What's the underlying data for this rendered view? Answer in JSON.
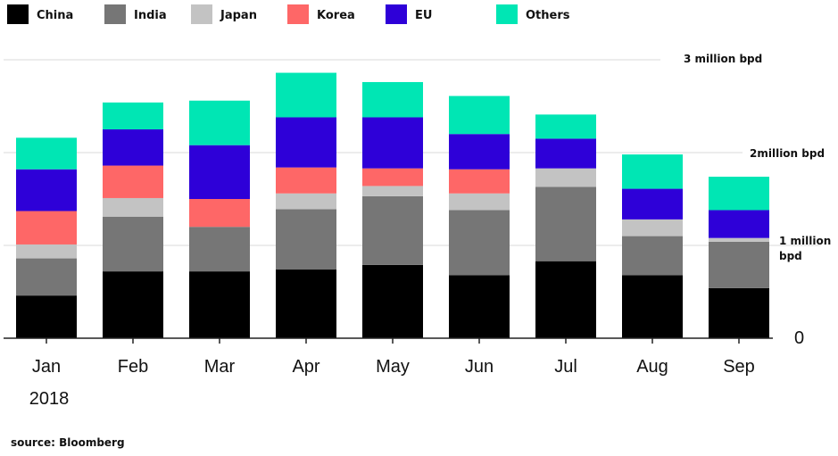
{
  "chart_data": {
    "type": "bar",
    "stacked": true,
    "categories": [
      "Jan",
      "Feb",
      "Mar",
      "Apr",
      "May",
      "Jun",
      "Jul",
      "Aug",
      "Sep"
    ],
    "year_label": "2018",
    "series": [
      {
        "name": "China",
        "color": "#000000",
        "values": [
          0.46,
          0.72,
          0.72,
          0.74,
          0.79,
          0.68,
          0.83,
          0.68,
          0.54
        ]
      },
      {
        "name": "India",
        "color": "#767676",
        "values": [
          0.4,
          0.59,
          0.48,
          0.65,
          0.74,
          0.7,
          0.8,
          0.42,
          0.5
        ]
      },
      {
        "name": "Japan",
        "color": "#c3c3c3",
        "values": [
          0.15,
          0.2,
          0.0,
          0.17,
          0.11,
          0.18,
          0.2,
          0.18,
          0.04
        ]
      },
      {
        "name": "Korea",
        "color": "#fe6767",
        "values": [
          0.36,
          0.35,
          0.3,
          0.28,
          0.19,
          0.26,
          0.0,
          0.0,
          0.0
        ]
      },
      {
        "name": "EU",
        "color": "#2e00d8",
        "values": [
          0.45,
          0.39,
          0.58,
          0.54,
          0.55,
          0.38,
          0.32,
          0.33,
          0.3
        ]
      },
      {
        "name": "Others",
        "color": "#00e6b4",
        "values": [
          0.34,
          0.29,
          0.48,
          0.48,
          0.38,
          0.41,
          0.26,
          0.37,
          0.36
        ]
      }
    ],
    "y_tick_labels": [
      {
        "value": 0,
        "label": "0"
      },
      {
        "value": 1,
        "label": "1 million bpd"
      },
      {
        "value": 2,
        "label": "2million bpd"
      },
      {
        "value": 3,
        "label": "3 million bpd"
      }
    ],
    "ylim": [
      0,
      3
    ],
    "grid": true,
    "legend_position": "top",
    "source": "source: Bloomberg"
  }
}
